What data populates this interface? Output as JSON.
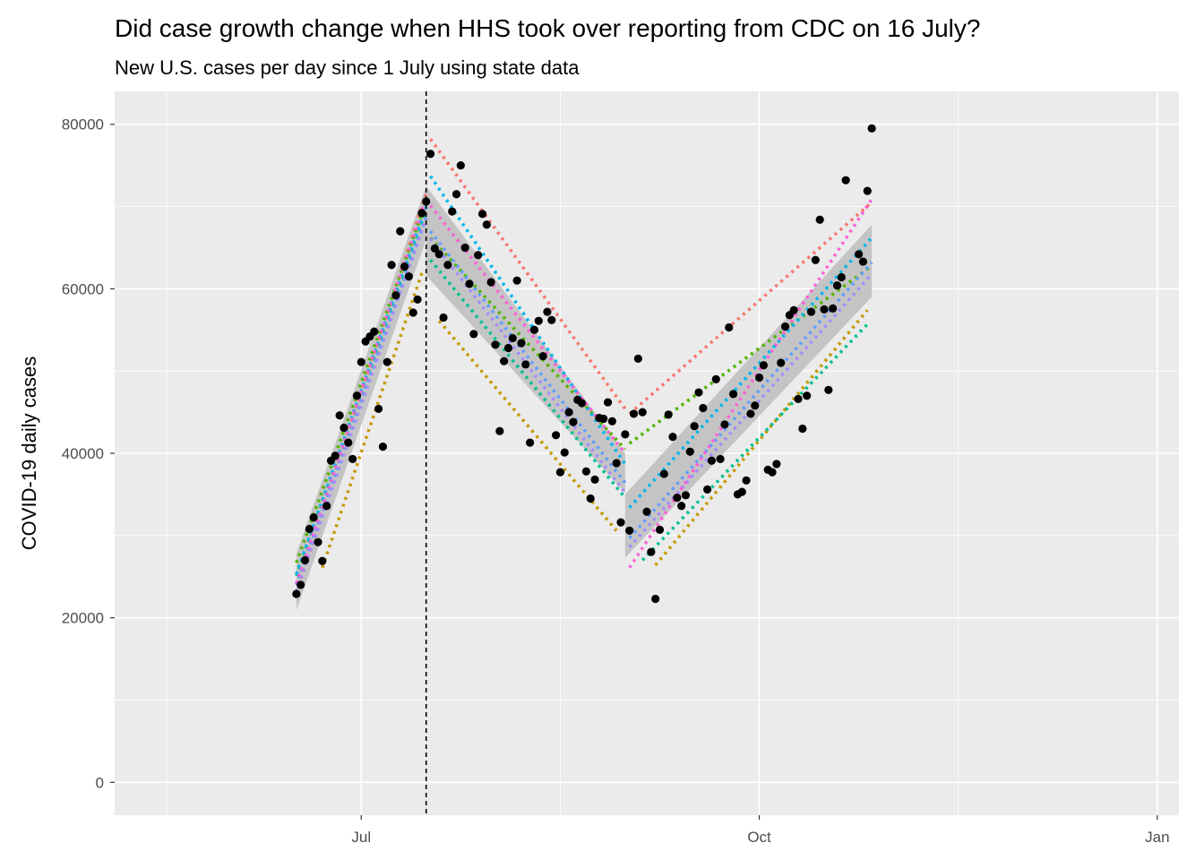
{
  "chart_data": {
    "type": "scatter",
    "title": "Did case growth change when HHS took over reporting from CDC on 16 July?",
    "subtitle": "New U.S. cases per day since 1 July using state data",
    "xlabel": "",
    "ylabel": "COVID-19 daily cases",
    "x_domain": [
      "2020-05-05",
      "2021-01-06"
    ],
    "ylim": [
      -4000,
      84000
    ],
    "x_ticks": [
      {
        "date": "2020-07-01",
        "label": "Jul"
      },
      {
        "date": "2020-10-01",
        "label": "Oct"
      },
      {
        "date": "2021-01-01",
        "label": "Jan"
      }
    ],
    "x_minor_ticks": [
      "2020-05-17",
      "2020-08-16",
      "2020-11-16"
    ],
    "y_ticks": [
      0,
      20000,
      40000,
      60000,
      80000
    ],
    "y_minor_ticks": [
      10000,
      30000,
      50000,
      70000
    ],
    "grid": true,
    "vline": {
      "date": "2020-07-16",
      "style": "dashed"
    },
    "colors": {
      "panel": "#ebebeb",
      "grid": "#ffffff",
      "points": "#000000",
      "ribbon": "#bdbdbd",
      "vline": "#000000",
      "lines": [
        "#F8766D",
        "#C49A00",
        "#53B400",
        "#00C094",
        "#00B6EB",
        "#619CFF",
        "#A58AFF",
        "#FB61D7"
      ]
    },
    "points": [
      {
        "x": "2020-06-16",
        "y": 22900
      },
      {
        "x": "2020-06-17",
        "y": 24000
      },
      {
        "x": "2020-06-18",
        "y": 27000
      },
      {
        "x": "2020-06-19",
        "y": 30800
      },
      {
        "x": "2020-06-20",
        "y": 32200
      },
      {
        "x": "2020-06-21",
        "y": 29200
      },
      {
        "x": "2020-06-22",
        "y": 26900
      },
      {
        "x": "2020-06-23",
        "y": 33600
      },
      {
        "x": "2020-06-24",
        "y": 39100
      },
      {
        "x": "2020-06-25",
        "y": 39700
      },
      {
        "x": "2020-06-26",
        "y": 44600
      },
      {
        "x": "2020-06-27",
        "y": 43100
      },
      {
        "x": "2020-06-28",
        "y": 41300
      },
      {
        "x": "2020-06-29",
        "y": 39300
      },
      {
        "x": "2020-06-30",
        "y": 47000
      },
      {
        "x": "2020-07-01",
        "y": 51100
      },
      {
        "x": "2020-07-02",
        "y": 53600
      },
      {
        "x": "2020-07-03",
        "y": 54200
      },
      {
        "x": "2020-07-04",
        "y": 54800
      },
      {
        "x": "2020-07-05",
        "y": 45400
      },
      {
        "x": "2020-07-06",
        "y": 40800
      },
      {
        "x": "2020-07-07",
        "y": 51100
      },
      {
        "x": "2020-07-08",
        "y": 62900
      },
      {
        "x": "2020-07-09",
        "y": 59200
      },
      {
        "x": "2020-07-10",
        "y": 67000
      },
      {
        "x": "2020-07-11",
        "y": 62700
      },
      {
        "x": "2020-07-12",
        "y": 61500
      },
      {
        "x": "2020-07-13",
        "y": 57100
      },
      {
        "x": "2020-07-14",
        "y": 58700
      },
      {
        "x": "2020-07-15",
        "y": 69200
      },
      {
        "x": "2020-07-16",
        "y": 70600
      },
      {
        "x": "2020-07-17",
        "y": 76400
      },
      {
        "x": "2020-07-18",
        "y": 64900
      },
      {
        "x": "2020-07-19",
        "y": 64200
      },
      {
        "x": "2020-07-20",
        "y": 56500
      },
      {
        "x": "2020-07-21",
        "y": 62900
      },
      {
        "x": "2020-07-22",
        "y": 69400
      },
      {
        "x": "2020-07-23",
        "y": 71500
      },
      {
        "x": "2020-07-24",
        "y": 75000
      },
      {
        "x": "2020-07-25",
        "y": 65000
      },
      {
        "x": "2020-07-26",
        "y": 60600
      },
      {
        "x": "2020-07-27",
        "y": 54500
      },
      {
        "x": "2020-07-28",
        "y": 64100
      },
      {
        "x": "2020-07-29",
        "y": 69100
      },
      {
        "x": "2020-07-30",
        "y": 67800
      },
      {
        "x": "2020-07-31",
        "y": 60800
      },
      {
        "x": "2020-08-01",
        "y": 53200
      },
      {
        "x": "2020-08-02",
        "y": 42700
      },
      {
        "x": "2020-08-03",
        "y": 51200
      },
      {
        "x": "2020-08-04",
        "y": 52800
      },
      {
        "x": "2020-08-05",
        "y": 54000
      },
      {
        "x": "2020-08-06",
        "y": 61000
      },
      {
        "x": "2020-08-07",
        "y": 53400
      },
      {
        "x": "2020-08-08",
        "y": 50800
      },
      {
        "x": "2020-08-09",
        "y": 41300
      },
      {
        "x": "2020-08-10",
        "y": 55000
      },
      {
        "x": "2020-08-11",
        "y": 56100
      },
      {
        "x": "2020-08-12",
        "y": 51800
      },
      {
        "x": "2020-08-13",
        "y": 57200
      },
      {
        "x": "2020-08-14",
        "y": 56200
      },
      {
        "x": "2020-08-15",
        "y": 42200
      },
      {
        "x": "2020-08-16",
        "y": 37700
      },
      {
        "x": "2020-08-17",
        "y": 40100
      },
      {
        "x": "2020-08-18",
        "y": 45000
      },
      {
        "x": "2020-08-19",
        "y": 43800
      },
      {
        "x": "2020-08-20",
        "y": 46500
      },
      {
        "x": "2020-08-21",
        "y": 46100
      },
      {
        "x": "2020-08-22",
        "y": 37800
      },
      {
        "x": "2020-08-23",
        "y": 34500
      },
      {
        "x": "2020-08-24",
        "y": 36800
      },
      {
        "x": "2020-08-25",
        "y": 44300
      },
      {
        "x": "2020-08-26",
        "y": 44200
      },
      {
        "x": "2020-08-27",
        "y": 46200
      },
      {
        "x": "2020-08-28",
        "y": 43900
      },
      {
        "x": "2020-08-29",
        "y": 38800
      },
      {
        "x": "2020-08-30",
        "y": 31600
      },
      {
        "x": "2020-08-31",
        "y": 42300
      },
      {
        "x": "2020-09-01",
        "y": 30600
      },
      {
        "x": "2020-09-02",
        "y": 44800
      },
      {
        "x": "2020-09-03",
        "y": 51500
      },
      {
        "x": "2020-09-04",
        "y": 45000
      },
      {
        "x": "2020-09-05",
        "y": 32900
      },
      {
        "x": "2020-09-06",
        "y": 28000
      },
      {
        "x": "2020-09-07",
        "y": 22300
      },
      {
        "x": "2020-09-08",
        "y": 30700
      },
      {
        "x": "2020-09-09",
        "y": 37500
      },
      {
        "x": "2020-09-10",
        "y": 44700
      },
      {
        "x": "2020-09-11",
        "y": 42000
      },
      {
        "x": "2020-09-12",
        "y": 34600
      },
      {
        "x": "2020-09-13",
        "y": 33600
      },
      {
        "x": "2020-09-14",
        "y": 34900
      },
      {
        "x": "2020-09-15",
        "y": 40200
      },
      {
        "x": "2020-09-16",
        "y": 43300
      },
      {
        "x": "2020-09-17",
        "y": 47400
      },
      {
        "x": "2020-09-18",
        "y": 45500
      },
      {
        "x": "2020-09-19",
        "y": 35600
      },
      {
        "x": "2020-09-20",
        "y": 39100
      },
      {
        "x": "2020-09-21",
        "y": 49000
      },
      {
        "x": "2020-09-22",
        "y": 39300
      },
      {
        "x": "2020-09-23",
        "y": 43500
      },
      {
        "x": "2020-09-24",
        "y": 55300
      },
      {
        "x": "2020-09-25",
        "y": 47200
      },
      {
        "x": "2020-09-26",
        "y": 35000
      },
      {
        "x": "2020-09-27",
        "y": 35300
      },
      {
        "x": "2020-09-28",
        "y": 36700
      },
      {
        "x": "2020-09-29",
        "y": 44800
      },
      {
        "x": "2020-09-30",
        "y": 45800
      },
      {
        "x": "2020-10-01",
        "y": 49200
      },
      {
        "x": "2020-10-02",
        "y": 50700
      },
      {
        "x": "2020-10-03",
        "y": 38000
      },
      {
        "x": "2020-10-04",
        "y": 37700
      },
      {
        "x": "2020-10-05",
        "y": 38700
      },
      {
        "x": "2020-10-06",
        "y": 51000
      },
      {
        "x": "2020-10-07",
        "y": 55400
      },
      {
        "x": "2020-10-08",
        "y": 56800
      },
      {
        "x": "2020-10-09",
        "y": 57400
      },
      {
        "x": "2020-10-10",
        "y": 46600
      },
      {
        "x": "2020-10-11",
        "y": 43000
      },
      {
        "x": "2020-10-12",
        "y": 47000
      },
      {
        "x": "2020-10-13",
        "y": 57200
      },
      {
        "x": "2020-10-14",
        "y": 63500
      },
      {
        "x": "2020-10-15",
        "y": 68400
      },
      {
        "x": "2020-10-16",
        "y": 57500
      },
      {
        "x": "2020-10-17",
        "y": 47700
      },
      {
        "x": "2020-10-18",
        "y": 57600
      },
      {
        "x": "2020-10-19",
        "y": 60400
      },
      {
        "x": "2020-10-20",
        "y": 61400
      },
      {
        "x": "2020-10-21",
        "y": 73200
      },
      {
        "x": "2020-10-24",
        "y": 64200
      },
      {
        "x": "2020-10-25",
        "y": 63300
      },
      {
        "x": "2020-10-26",
        "y": 71900
      },
      {
        "x": "2020-10-27",
        "y": 79500
      }
    ],
    "ribbon": [
      [
        {
          "x": "2020-06-16",
          "upper": 27800,
          "lower": 20900
        },
        {
          "x": "2020-07-16",
          "upper": 72500,
          "lower": 66000
        }
      ],
      [
        {
          "x": "2020-07-16",
          "upper": 72500,
          "lower": 61600
        },
        {
          "x": "2020-08-31",
          "upper": 40000,
          "lower": 35200
        }
      ],
      [
        {
          "x": "2020-08-31",
          "upper": 35000,
          "lower": 27300
        },
        {
          "x": "2020-10-27",
          "upper": 67800,
          "lower": 59000
        }
      ]
    ],
    "series": [
      {
        "values": [
          {
            "x": "2020-06-16",
            "y": 23100
          },
          {
            "x": "2020-07-16",
            "y": 71600
          },
          {
            "x": "2020-07-17",
            "y": 78200
          },
          {
            "x": "2020-08-31",
            "y": 45400
          },
          {
            "x": "2020-09-01",
            "y": 44800
          },
          {
            "x": "2020-10-27",
            "y": 70500
          }
        ]
      },
      {
        "values": [
          {
            "x": "2020-06-22",
            "y": 26100
          },
          {
            "x": "2020-07-15",
            "y": 61900
          },
          {
            "x": "2020-07-19",
            "y": 56100
          },
          {
            "x": "2020-08-29",
            "y": 30600
          },
          {
            "x": "2020-09-07",
            "y": 26400
          },
          {
            "x": "2020-10-26",
            "y": 57400
          }
        ]
      },
      {
        "values": [
          {
            "x": "2020-06-16",
            "y": 26700
          },
          {
            "x": "2020-07-16",
            "y": 70500
          },
          {
            "x": "2020-07-17",
            "y": 66200
          },
          {
            "x": "2020-08-31",
            "y": 40500
          },
          {
            "x": "2020-09-01",
            "y": 41200
          },
          {
            "x": "2020-10-27",
            "y": 62800
          }
        ]
      },
      {
        "values": [
          {
            "x": "2020-06-16",
            "y": 25100
          },
          {
            "x": "2020-07-16",
            "y": 69300
          },
          {
            "x": "2020-07-17",
            "y": 63500
          },
          {
            "x": "2020-08-31",
            "y": 34600
          },
          {
            "x": "2020-09-04",
            "y": 27000
          },
          {
            "x": "2020-10-26",
            "y": 55700
          }
        ]
      },
      {
        "values": [
          {
            "x": "2020-06-16",
            "y": 25300
          },
          {
            "x": "2020-07-16",
            "y": 70000
          },
          {
            "x": "2020-07-17",
            "y": 73700
          },
          {
            "x": "2020-08-31",
            "y": 38700
          },
          {
            "x": "2020-09-01",
            "y": 33400
          },
          {
            "x": "2020-10-27",
            "y": 66200
          }
        ]
      },
      {
        "values": [
          {
            "x": "2020-06-16",
            "y": 24000
          },
          {
            "x": "2020-07-16",
            "y": 68700
          },
          {
            "x": "2020-07-17",
            "y": 67000
          },
          {
            "x": "2020-08-31",
            "y": 36400
          },
          {
            "x": "2020-09-01",
            "y": 29700
          },
          {
            "x": "2020-10-27",
            "y": 63200
          }
        ]
      },
      {
        "values": [
          {
            "x": "2020-06-16",
            "y": 23200
          },
          {
            "x": "2020-07-16",
            "y": 68600
          },
          {
            "x": "2020-07-17",
            "y": 66100
          },
          {
            "x": "2020-08-31",
            "y": 35200
          },
          {
            "x": "2020-09-01",
            "y": 28600
          },
          {
            "x": "2020-10-27",
            "y": 61800
          }
        ]
      },
      {
        "values": [
          {
            "x": "2020-06-16",
            "y": 24200
          },
          {
            "x": "2020-07-16",
            "y": 70900
          },
          {
            "x": "2020-07-17",
            "y": 70100
          },
          {
            "x": "2020-08-31",
            "y": 40000
          },
          {
            "x": "2020-09-01",
            "y": 26100
          },
          {
            "x": "2020-10-27",
            "y": 70900
          }
        ]
      }
    ]
  }
}
